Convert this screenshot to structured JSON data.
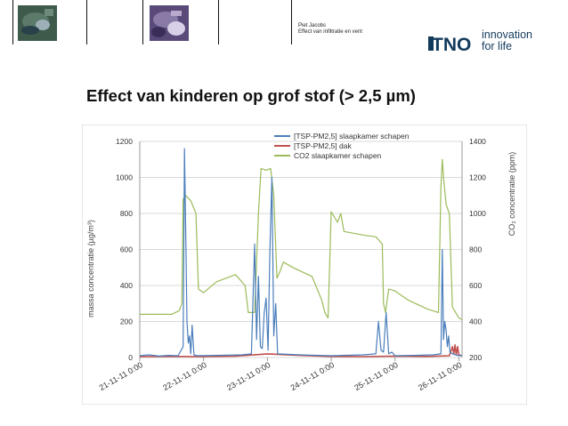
{
  "header": {
    "author": "Piet Jacobs",
    "subject": "Effect van infiltratie en vent",
    "logo_text": "TNO",
    "tagline_line1": "innovation",
    "tagline_line2": "for life"
  },
  "slide": {
    "title": "Effect van kinderen op grof stof (> 2,5 µm)"
  },
  "chart_data": {
    "type": "line",
    "title": "",
    "ylabel": "massa concentratie (µg/m³)",
    "y2label": "CO₂ concentratie (ppm)",
    "ylim": [
      0,
      1200
    ],
    "y2lim": [
      200,
      1400
    ],
    "yticks": [
      0,
      200,
      400,
      600,
      800,
      1000,
      1200
    ],
    "y2ticks": [
      200,
      400,
      600,
      800,
      1000,
      1200,
      1400
    ],
    "xlim": [
      0,
      5.05
    ],
    "xticks": [
      {
        "x": 0,
        "label": "21-11-11 0:00"
      },
      {
        "x": 1,
        "label": "22-11-11 0:00"
      },
      {
        "x": 2,
        "label": "23-11-11 0:00"
      },
      {
        "x": 3,
        "label": "24-11-11 0:00"
      },
      {
        "x": 4,
        "label": "25-11-11 0:00"
      },
      {
        "x": 5,
        "label": "26-11-11 0:00"
      }
    ],
    "legend_position": "top-center",
    "grid": "horizontal",
    "series": [
      {
        "name": "[TSP-PM2,5] slaapkamer schapen",
        "color": "#4a7ebb",
        "axis": "left",
        "x": [
          0,
          0.15,
          0.3,
          0.45,
          0.6,
          0.68,
          0.7,
          0.72,
          0.74,
          0.76,
          0.78,
          0.8,
          0.82,
          0.85,
          0.9,
          1.2,
          1.6,
          1.75,
          1.8,
          1.83,
          1.86,
          1.89,
          1.92,
          1.95,
          1.98,
          2.01,
          2.04,
          2.07,
          2.1,
          2.13,
          2.16,
          2.5,
          2.8,
          3.0,
          3.5,
          3.7,
          3.74,
          3.78,
          3.82,
          3.86,
          3.9,
          3.95,
          4.0,
          4.3,
          4.6,
          4.72,
          4.74,
          4.76,
          4.78,
          4.8,
          4.82,
          4.84,
          4.86,
          4.9,
          4.95,
          5.0,
          5.05
        ],
        "y": [
          10,
          15,
          8,
          12,
          10,
          60,
          1160,
          700,
          200,
          80,
          120,
          20,
          180,
          15,
          10,
          12,
          15,
          20,
          630,
          100,
          450,
          60,
          50,
          250,
          330,
          40,
          600,
          1000,
          120,
          300,
          20,
          15,
          12,
          10,
          15,
          20,
          200,
          40,
          30,
          250,
          20,
          30,
          10,
          12,
          15,
          20,
          600,
          100,
          200,
          150,
          60,
          120,
          30,
          20,
          15,
          10,
          12
        ]
      },
      {
        "name": "[TSP-PM2,5] dak",
        "color": "#c0504d",
        "axis": "left",
        "x": [
          0,
          0.5,
          1.0,
          1.5,
          2.0,
          2.5,
          3.0,
          3.5,
          4.0,
          4.5,
          4.85,
          4.9,
          4.92,
          4.94,
          4.96,
          4.98,
          5.0,
          5.05
        ],
        "y": [
          5,
          6,
          5,
          8,
          20,
          12,
          6,
          5,
          8,
          6,
          10,
          60,
          20,
          70,
          15,
          60,
          15,
          10
        ]
      },
      {
        "name": "CO2 slaapkamer schapen",
        "color": "#9bbb59",
        "axis": "right",
        "x": [
          0,
          0.5,
          0.62,
          0.66,
          0.68,
          0.72,
          0.8,
          0.88,
          0.92,
          1.0,
          1.2,
          1.5,
          1.65,
          1.7,
          1.8,
          1.86,
          1.9,
          1.98,
          2.05,
          2.1,
          2.15,
          2.2,
          2.25,
          2.4,
          2.7,
          2.85,
          2.9,
          2.95,
          3.0,
          3.1,
          3.15,
          3.2,
          3.5,
          3.7,
          3.8,
          3.82,
          3.85,
          3.9,
          4.0,
          4.2,
          4.5,
          4.68,
          4.72,
          4.74,
          4.76,
          4.8,
          4.85,
          4.9,
          5.0,
          5.05
        ],
        "y": [
          440,
          440,
          460,
          500,
          1080,
          1100,
          1070,
          1000,
          580,
          560,
          620,
          660,
          600,
          450,
          450,
          1000,
          1250,
          1240,
          1250,
          1100,
          640,
          680,
          730,
          700,
          650,
          520,
          450,
          420,
          1010,
          950,
          1000,
          900,
          880,
          870,
          830,
          500,
          450,
          580,
          570,
          520,
          470,
          450,
          1150,
          1300,
          1200,
          1050,
          1000,
          480,
          420,
          410
        ]
      }
    ]
  }
}
